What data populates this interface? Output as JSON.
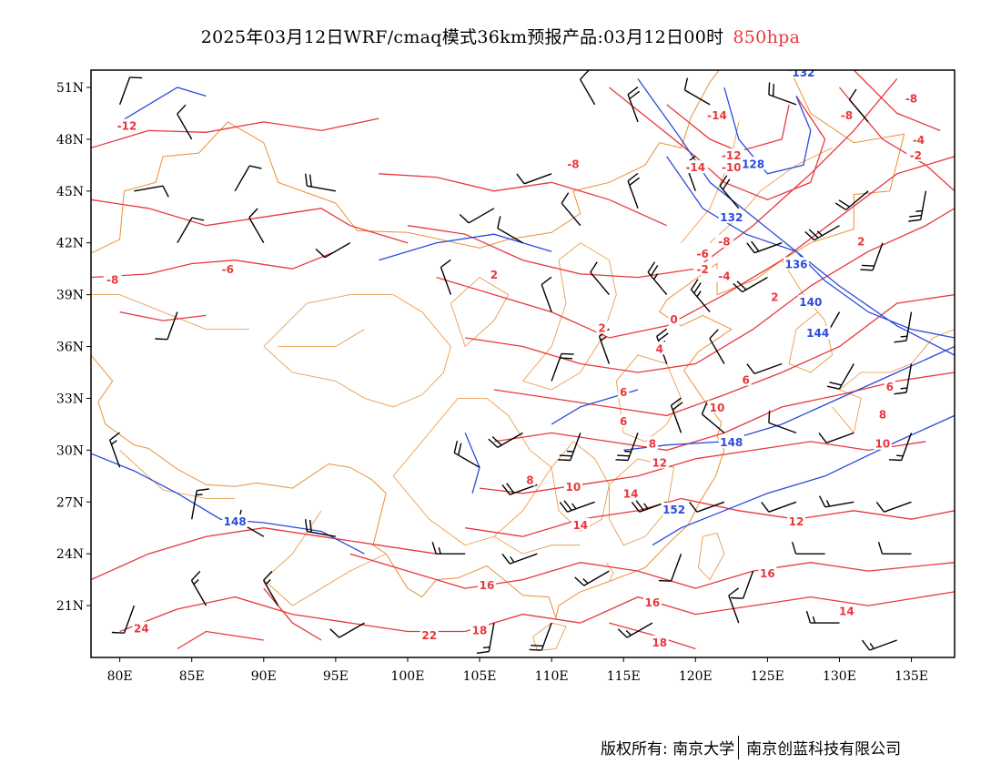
{
  "header": {
    "title": "2025年03月12日WRF/cmaq模式36km预报产品:03月12日00时",
    "level": "850hpa"
  },
  "footer": {
    "copyright": "版权所有: 南京大学",
    "company": "南京创蓝科技有限公司"
  },
  "colors": {
    "temperature_contour": "#e8383d",
    "geopotential_contour": "#2a4bdc",
    "boundary": "#e8913a",
    "wind_barb": "#000000"
  },
  "axes": {
    "lon_labels": [
      "80E",
      "85E",
      "90E",
      "95E",
      "100E",
      "105E",
      "110E",
      "115E",
      "120E",
      "125E",
      "130E",
      "135E"
    ],
    "lat_labels": [
      "51N",
      "48N",
      "45N",
      "42N",
      "39N",
      "36N",
      "33N",
      "30N",
      "27N",
      "24N",
      "21N"
    ]
  },
  "map_extent": {
    "lon_range": [
      78,
      138
    ],
    "lat_range": [
      18,
      52
    ]
  },
  "temperature_labels": [
    {
      "text": "-12",
      "lon": 80.5,
      "lat": 48.7
    },
    {
      "text": "-8",
      "lon": 79.5,
      "lat": 39.8
    },
    {
      "text": "-6",
      "lon": 87.5,
      "lat": 40.4
    },
    {
      "text": "-8",
      "lon": 111.5,
      "lat": 46.5
    },
    {
      "text": "-14",
      "lon": 121.5,
      "lat": 49.3
    },
    {
      "text": "-12",
      "lon": 122.5,
      "lat": 47.0
    },
    {
      "text": "-14",
      "lon": 120.0,
      "lat": 46.3
    },
    {
      "text": "-10",
      "lon": 122.5,
      "lat": 46.3
    },
    {
      "text": "-8",
      "lon": 130.5,
      "lat": 49.3
    },
    {
      "text": "-8",
      "lon": 135.0,
      "lat": 50.3
    },
    {
      "text": "-4",
      "lon": 135.5,
      "lat": 47.9
    },
    {
      "text": "-2",
      "lon": 135.3,
      "lat": 47.0
    },
    {
      "text": "-8",
      "lon": 122.0,
      "lat": 42.0
    },
    {
      "text": "-6",
      "lon": 120.5,
      "lat": 41.3
    },
    {
      "text": "-2",
      "lon": 120.5,
      "lat": 40.4
    },
    {
      "text": "-4",
      "lon": 122.0,
      "lat": 40.0
    },
    {
      "text": "2",
      "lon": 131.5,
      "lat": 42.0
    },
    {
      "text": "2",
      "lon": 125.5,
      "lat": 38.8
    },
    {
      "text": "2",
      "lon": 106.0,
      "lat": 40.1
    },
    {
      "text": "2",
      "lon": 113.5,
      "lat": 37.0
    },
    {
      "text": "0",
      "lon": 118.5,
      "lat": 37.5
    },
    {
      "text": "4",
      "lon": 117.5,
      "lat": 35.8
    },
    {
      "text": "6",
      "lon": 115.0,
      "lat": 33.3
    },
    {
      "text": "6",
      "lon": 115.0,
      "lat": 31.6
    },
    {
      "text": "6",
      "lon": 123.5,
      "lat": 34.0
    },
    {
      "text": "6",
      "lon": 133.5,
      "lat": 33.6
    },
    {
      "text": "8",
      "lon": 117.0,
      "lat": 30.3
    },
    {
      "text": "8",
      "lon": 133.0,
      "lat": 32.0
    },
    {
      "text": "10",
      "lon": 121.5,
      "lat": 32.4
    },
    {
      "text": "10",
      "lon": 133.0,
      "lat": 30.3
    },
    {
      "text": "12",
      "lon": 117.5,
      "lat": 29.2
    },
    {
      "text": "12",
      "lon": 127.0,
      "lat": 25.8
    },
    {
      "text": "8",
      "lon": 108.5,
      "lat": 28.2
    },
    {
      "text": "10",
      "lon": 111.5,
      "lat": 27.8
    },
    {
      "text": "14",
      "lon": 115.5,
      "lat": 27.4
    },
    {
      "text": "14",
      "lon": 112.0,
      "lat": 25.6
    },
    {
      "text": "16",
      "lon": 105.5,
      "lat": 22.1
    },
    {
      "text": "16",
      "lon": 125.0,
      "lat": 22.8
    },
    {
      "text": "16",
      "lon": 117.0,
      "lat": 21.1
    },
    {
      "text": "18",
      "lon": 105.0,
      "lat": 19.5
    },
    {
      "text": "18",
      "lon": 117.5,
      "lat": 18.8
    },
    {
      "text": "14",
      "lon": 130.5,
      "lat": 20.6
    },
    {
      "text": "22",
      "lon": 101.5,
      "lat": 19.2
    },
    {
      "text": "24",
      "lon": 81.5,
      "lat": 19.6
    }
  ],
  "geopotential_labels": [
    {
      "text": "132",
      "lon": 127.5,
      "lat": 51.8
    },
    {
      "text": "128",
      "lon": 124.0,
      "lat": 46.5
    },
    {
      "text": "132",
      "lon": 122.5,
      "lat": 43.4
    },
    {
      "text": "136",
      "lon": 127.0,
      "lat": 40.7
    },
    {
      "text": "140",
      "lon": 128.0,
      "lat": 38.5
    },
    {
      "text": "144",
      "lon": 128.5,
      "lat": 36.7
    },
    {
      "text": "148",
      "lon": 122.5,
      "lat": 30.4
    },
    {
      "text": "148",
      "lon": 88.0,
      "lat": 25.8
    },
    {
      "text": "152",
      "lon": 118.5,
      "lat": 26.5
    }
  ],
  "wind_barbs": [
    {
      "lon": 80,
      "lat": 50,
      "dir": 20,
      "ws": 10
    },
    {
      "lon": 85,
      "lat": 48,
      "dir": 330,
      "ws": 10
    },
    {
      "lon": 81,
      "lat": 45,
      "dir": 80,
      "ws": 10
    },
    {
      "lon": 88,
      "lat": 45,
      "dir": 30,
      "ws": 10
    },
    {
      "lon": 95,
      "lat": 45,
      "dir": 280,
      "ws": 20
    },
    {
      "lon": 84,
      "lat": 42,
      "dir": 30,
      "ws": 10
    },
    {
      "lon": 90,
      "lat": 42,
      "dir": 330,
      "ws": 10
    },
    {
      "lon": 96,
      "lat": 42,
      "dir": 240,
      "ws": 10
    },
    {
      "lon": 84,
      "lat": 38,
      "dir": 200,
      "ws": 10
    },
    {
      "lon": 106,
      "lat": 44,
      "dir": 240,
      "ws": 10
    },
    {
      "lon": 110,
      "lat": 46,
      "dir": 250,
      "ws": 10
    },
    {
      "lon": 108,
      "lat": 42,
      "dir": 300,
      "ws": 10
    },
    {
      "lon": 112,
      "lat": 43,
      "dir": 320,
      "ws": 10
    },
    {
      "lon": 116,
      "lat": 44,
      "dir": 340,
      "ws": 20
    },
    {
      "lon": 120,
      "lat": 45,
      "dir": 340,
      "ws": 25
    },
    {
      "lon": 123,
      "lat": 44,
      "dir": 320,
      "ws": 20
    },
    {
      "lon": 126,
      "lat": 42,
      "dir": 250,
      "ws": 20
    },
    {
      "lon": 130,
      "lat": 43,
      "dir": 240,
      "ws": 25
    },
    {
      "lon": 133,
      "lat": 42,
      "dir": 200,
      "ws": 20
    },
    {
      "lon": 136,
      "lat": 45,
      "dir": 190,
      "ws": 25
    },
    {
      "lon": 132,
      "lat": 45,
      "dir": 230,
      "ws": 20
    },
    {
      "lon": 116,
      "lat": 49,
      "dir": 340,
      "ws": 20
    },
    {
      "lon": 113,
      "lat": 50,
      "dir": 330,
      "ws": 10
    },
    {
      "lon": 121,
      "lat": 50,
      "dir": 300,
      "ws": 10
    },
    {
      "lon": 127,
      "lat": 50,
      "dir": 290,
      "ws": 20
    },
    {
      "lon": 132,
      "lat": 49,
      "dir": 320,
      "ws": 10
    },
    {
      "lon": 103,
      "lat": 39,
      "dir": 340,
      "ws": 10
    },
    {
      "lon": 110,
      "lat": 38,
      "dir": 340,
      "ws": 10
    },
    {
      "lon": 114,
      "lat": 39,
      "dir": 320,
      "ws": 10
    },
    {
      "lon": 118,
      "lat": 39,
      "dir": 320,
      "ws": 25
    },
    {
      "lon": 121,
      "lat": 38,
      "dir": 320,
      "ws": 25
    },
    {
      "lon": 125,
      "lat": 40,
      "dir": 240,
      "ws": 20
    },
    {
      "lon": 130,
      "lat": 38,
      "dir": 210,
      "ws": 20
    },
    {
      "lon": 135,
      "lat": 38,
      "dir": 190,
      "ws": 15
    },
    {
      "lon": 110,
      "lat": 34,
      "dir": 20,
      "ws": 20
    },
    {
      "lon": 114,
      "lat": 35,
      "dir": 340,
      "ws": 15
    },
    {
      "lon": 118,
      "lat": 35,
      "dir": 340,
      "ws": 25
    },
    {
      "lon": 122,
      "lat": 35,
      "dir": 330,
      "ws": 10
    },
    {
      "lon": 126,
      "lat": 35,
      "dir": 250,
      "ws": 10
    },
    {
      "lon": 131,
      "lat": 35,
      "dir": 210,
      "ws": 20
    },
    {
      "lon": 135,
      "lat": 35,
      "dir": 190,
      "ws": 15
    },
    {
      "lon": 108,
      "lat": 31,
      "dir": 240,
      "ws": 20
    },
    {
      "lon": 112,
      "lat": 31,
      "dir": 200,
      "ws": 25
    },
    {
      "lon": 116,
      "lat": 31,
      "dir": 200,
      "ws": 25
    },
    {
      "lon": 119,
      "lat": 31,
      "dir": 340,
      "ws": 20
    },
    {
      "lon": 122,
      "lat": 31,
      "dir": 310,
      "ws": 10
    },
    {
      "lon": 127,
      "lat": 31,
      "dir": 290,
      "ws": 10
    },
    {
      "lon": 131,
      "lat": 31,
      "dir": 250,
      "ws": 10
    },
    {
      "lon": 135,
      "lat": 31,
      "dir": 200,
      "ws": 15
    },
    {
      "lon": 105,
      "lat": 29,
      "dir": 300,
      "ws": 20
    },
    {
      "lon": 109,
      "lat": 28,
      "dir": 250,
      "ws": 20
    },
    {
      "lon": 113,
      "lat": 27,
      "dir": 250,
      "ws": 25
    },
    {
      "lon": 118,
      "lat": 27,
      "dir": 250,
      "ws": 25
    },
    {
      "lon": 122,
      "lat": 27,
      "dir": 250,
      "ws": 10
    },
    {
      "lon": 127,
      "lat": 27,
      "dir": 250,
      "ws": 10
    },
    {
      "lon": 131,
      "lat": 27,
      "dir": 260,
      "ws": 15
    },
    {
      "lon": 135,
      "lat": 27,
      "dir": 250,
      "ws": 10
    },
    {
      "lon": 80,
      "lat": 29,
      "dir": 340,
      "ws": 15
    },
    {
      "lon": 85,
      "lat": 26,
      "dir": 10,
      "ws": 15
    },
    {
      "lon": 90,
      "lat": 25,
      "dir": 300,
      "ws": 15
    },
    {
      "lon": 95,
      "lat": 25,
      "dir": 280,
      "ws": 20
    },
    {
      "lon": 104,
      "lat": 24,
      "dir": 270,
      "ws": 15
    },
    {
      "lon": 109,
      "lat": 24,
      "dir": 250,
      "ws": 15
    },
    {
      "lon": 114,
      "lat": 23,
      "dir": 240,
      "ws": 15
    },
    {
      "lon": 119,
      "lat": 24,
      "dir": 200,
      "ws": 10
    },
    {
      "lon": 124,
      "lat": 23,
      "dir": 200,
      "ws": 10
    },
    {
      "lon": 129,
      "lat": 24,
      "dir": 270,
      "ws": 10
    },
    {
      "lon": 135,
      "lat": 24,
      "dir": 270,
      "ws": 10
    },
    {
      "lon": 81,
      "lat": 21,
      "dir": 200,
      "ws": 10
    },
    {
      "lon": 86,
      "lat": 21,
      "dir": 330,
      "ws": 15
    },
    {
      "lon": 91,
      "lat": 21,
      "dir": 330,
      "ws": 15
    },
    {
      "lon": 97,
      "lat": 20,
      "dir": 240,
      "ws": 10
    },
    {
      "lon": 106,
      "lat": 20,
      "dir": 190,
      "ws": 15
    },
    {
      "lon": 110,
      "lat": 20,
      "dir": 200,
      "ws": 20
    },
    {
      "lon": 117,
      "lat": 20,
      "dir": 240,
      "ws": 15
    },
    {
      "lon": 123,
      "lat": 20,
      "dir": 340,
      "ws": 10
    },
    {
      "lon": 130,
      "lat": 20,
      "dir": 270,
      "ws": 15
    },
    {
      "lon": 134,
      "lat": 19,
      "dir": 250,
      "ws": 15
    }
  ]
}
